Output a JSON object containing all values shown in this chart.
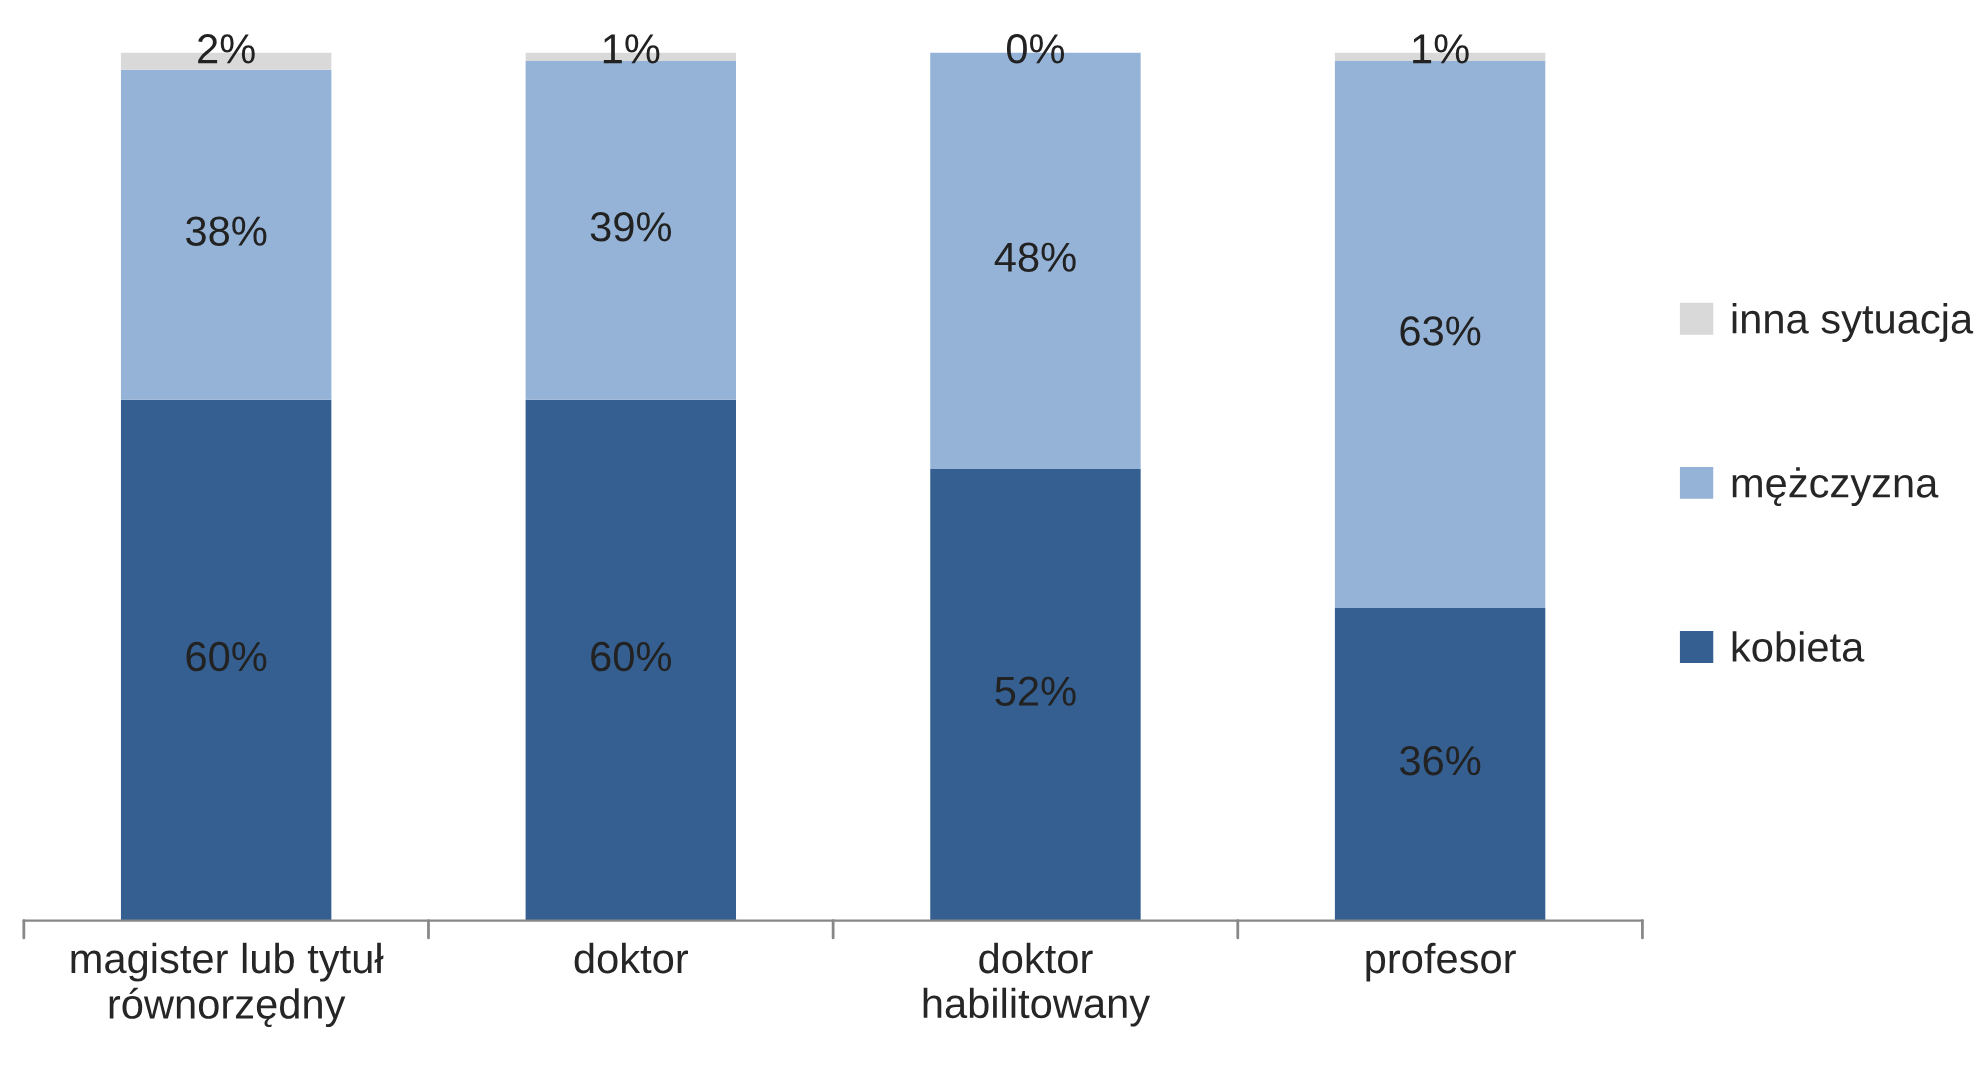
{
  "chart_data": {
    "type": "bar",
    "stacked": true,
    "categories": [
      "magister lub tytuł\nrównorzędny",
      "doktor",
      "doktor\nhabilitowany",
      "profesor"
    ],
    "series": [
      {
        "name": "kobieta",
        "color": "#355f91",
        "values": [
          60,
          60,
          52,
          36
        ],
        "value_labels": [
          "60%",
          "60%",
          "52%",
          "36%"
        ]
      },
      {
        "name": "mężczyzna",
        "color": "#95b3d7",
        "values": [
          38,
          39,
          48,
          63
        ],
        "value_labels": [
          "38%",
          "39%",
          "48%",
          "63%"
        ]
      },
      {
        "name": "inna sytuacja",
        "color": "#d9d9d9",
        "values": [
          2,
          1,
          0,
          1
        ],
        "value_labels": [
          "2%",
          "1%",
          "0%",
          "1%"
        ]
      }
    ],
    "legend": "right"
  }
}
